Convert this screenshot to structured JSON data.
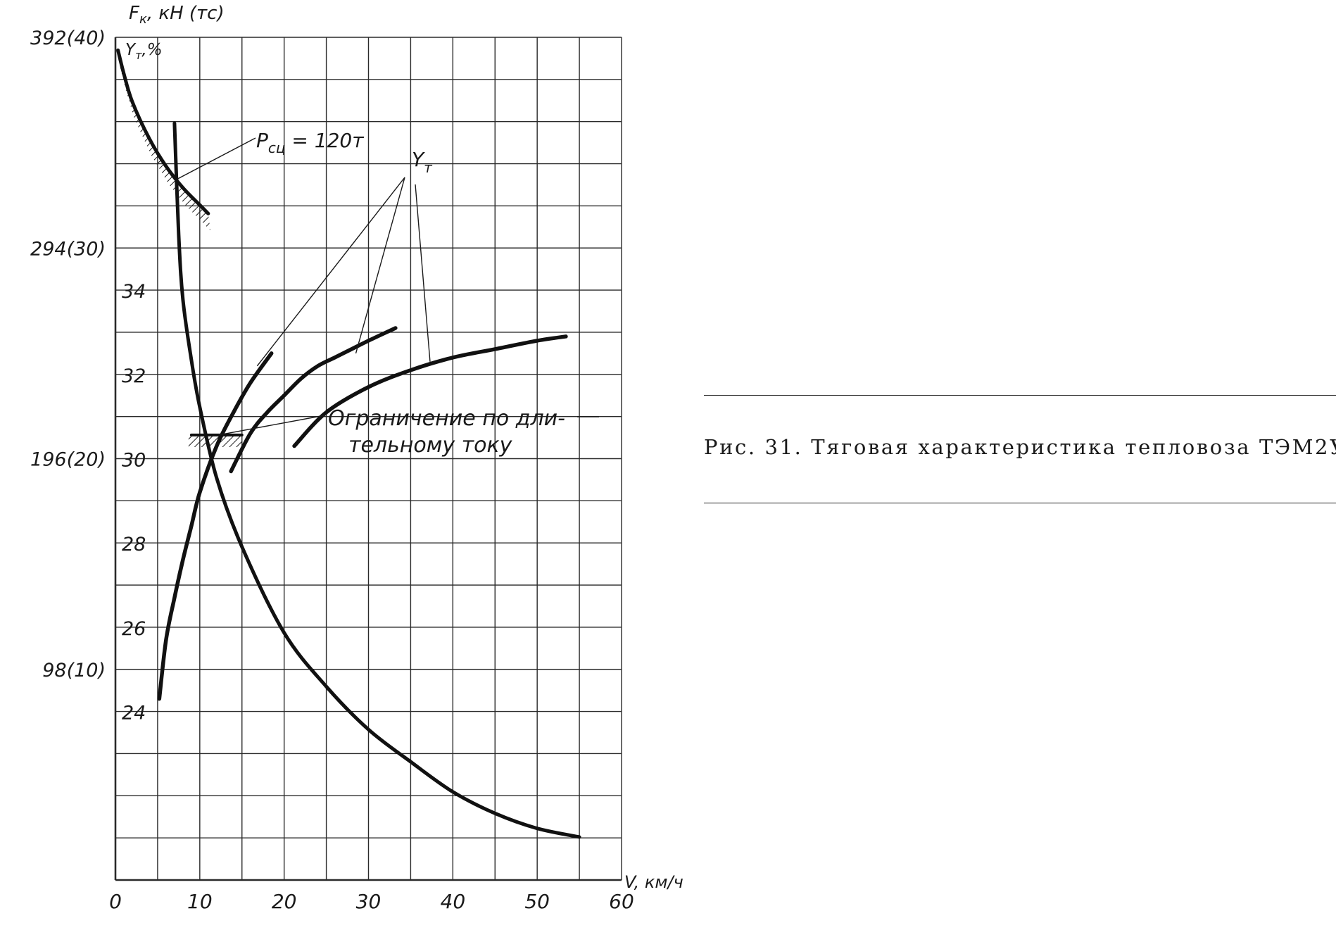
{
  "chart_data": {
    "type": "line",
    "title": "",
    "x_axis": {
      "label": "V, км/ч",
      "range": [
        0,
        60
      ],
      "ticks": [
        {
          "value": 0,
          "label": "0"
        },
        {
          "value": 10,
          "label": "10"
        },
        {
          "value": 20,
          "label": "20"
        },
        {
          "value": 30,
          "label": "30"
        },
        {
          "value": 40,
          "label": "40"
        },
        {
          "value": 50,
          "label": "50"
        },
        {
          "value": 60,
          "label": "60"
        }
      ]
    },
    "y_axis_force": {
      "label": "F_к, кН (тс)",
      "label_main": "F",
      "label_sub": "к",
      "label_rest": ", кН (тс)",
      "range_kN": [
        0,
        392
      ],
      "ticks": [
        {
          "value": 98,
          "label": "98(10)"
        },
        {
          "value": 196,
          "label": "196(20)"
        },
        {
          "value": 294,
          "label": "294(30)"
        },
        {
          "value": 392,
          "label": "392(40)"
        }
      ]
    },
    "y_axis_efficiency": {
      "label": "Y_т,%",
      "label_main": "Y",
      "label_sub": "т",
      "label_rest": ",%",
      "range_percent": [
        20,
        40
      ],
      "ticks": [
        {
          "value": 24,
          "label": "24"
        },
        {
          "value": 26,
          "label": "26"
        },
        {
          "value": 28,
          "label": "28"
        },
        {
          "value": 30,
          "label": "30"
        },
        {
          "value": 32,
          "label": "32"
        },
        {
          "value": 34,
          "label": "34"
        }
      ]
    },
    "grid": true,
    "series": [
      {
        "name": "Fk",
        "axis": "force",
        "x": [
          7,
          7.5,
          8,
          9,
          10,
          12,
          15,
          20,
          25,
          30,
          35,
          40,
          45,
          50,
          55
        ],
        "y": [
          352,
          300,
          270,
          242,
          220,
          187,
          155,
          115,
          90,
          70,
          55,
          41,
          31,
          24,
          20
        ]
      },
      {
        "name": "Yт (1)",
        "axis": "efficiency",
        "x": [
          5.2,
          6,
          7,
          8,
          9,
          10,
          12,
          14,
          16,
          18.5
        ],
        "y": [
          24.3,
          25.7,
          26.7,
          27.6,
          28.4,
          29.2,
          30.3,
          31.1,
          31.8,
          32.5
        ]
      },
      {
        "name": "Yт (2)",
        "axis": "efficiency",
        "x": [
          13.7,
          16,
          18,
          20,
          22,
          24,
          26,
          28,
          30,
          33.2
        ],
        "y": [
          29.7,
          30.6,
          31.1,
          31.5,
          31.9,
          32.2,
          32.4,
          32.6,
          32.8,
          33.1
        ]
      },
      {
        "name": "Yт (3)",
        "axis": "efficiency",
        "x": [
          21.2,
          25,
          30,
          35,
          40,
          45,
          50,
          53.4
        ],
        "y": [
          30.3,
          31.1,
          31.7,
          32.1,
          32.4,
          32.6,
          32.8,
          32.9
        ]
      },
      {
        "name": "Pсц = 120т",
        "axis": "force",
        "x": [
          0.3,
          1,
          2,
          4,
          6,
          8,
          10,
          11
        ],
        "y": [
          386,
          375,
          362,
          345,
          332,
          322,
          314,
          310
        ]
      },
      {
        "name": "Ограничение по длительному току",
        "axis": "force",
        "x": [
          9,
          15
        ],
        "y": [
          207,
          207
        ]
      }
    ],
    "annotations": [
      {
        "label_main": "P",
        "label_sub": "сц",
        "label_rest": " = 120т"
      },
      {
        "label_main": "Y",
        "label_sub": "т"
      },
      {
        "line1": "Ограничение по дли-",
        "line2": "тельному току"
      }
    ]
  },
  "caption": {
    "text": "Рис. 31. Тяговая характеристика тепловоза ТЭМ2У"
  }
}
